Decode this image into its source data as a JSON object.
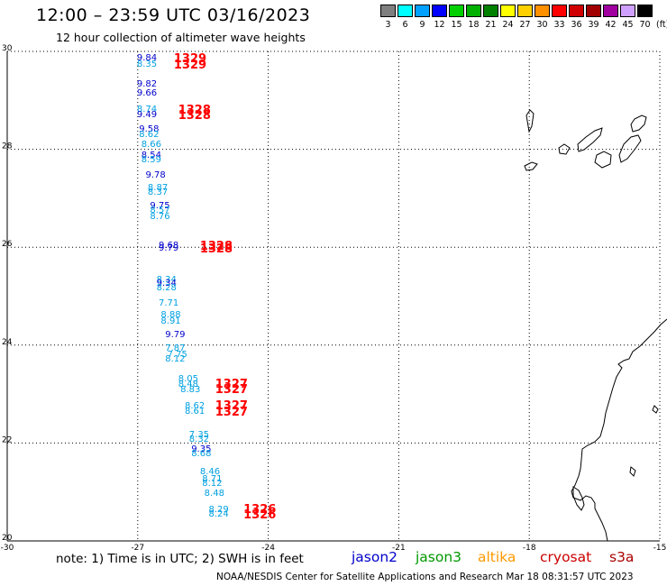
{
  "title": "12:00 – 23:59 UTC 03/16/2023",
  "subtitle": "12 hour collection of altimeter wave heights",
  "legend": {
    "unit": "(ft)",
    "bins": [
      {
        "label": "3",
        "color": "#7f7f7f"
      },
      {
        "label": "6",
        "color": "#00ffff"
      },
      {
        "label": "9",
        "color": "#00a0ff"
      },
      {
        "label": "12",
        "color": "#0000ff"
      },
      {
        "label": "15",
        "color": "#00d000"
      },
      {
        "label": "18",
        "color": "#00b000"
      },
      {
        "label": "21",
        "color": "#008000"
      },
      {
        "label": "24",
        "color": "#ffff00"
      },
      {
        "label": "27",
        "color": "#ffd000"
      },
      {
        "label": "30",
        "color": "#ff9000"
      },
      {
        "label": "33",
        "color": "#ff0000"
      },
      {
        "label": "36",
        "color": "#d00000"
      },
      {
        "label": "39",
        "color": "#a00000"
      },
      {
        "label": "42",
        "color": "#a000a0"
      },
      {
        "label": "45",
        "color": "#d0a0ff"
      },
      {
        "label": "70",
        "color": "#000000"
      }
    ]
  },
  "axes": {
    "lat_labels": [
      "30",
      "28",
      "26",
      "24",
      "22",
      "20"
    ],
    "lon_labels": [
      "-30",
      "-27",
      "-24",
      "-21",
      "-18",
      "-15"
    ],
    "lat_range": [
      20,
      30
    ],
    "lon_range": [
      -30,
      -15
    ]
  },
  "colors": {
    "jason2": "#0000cc",
    "jason3": "#009900",
    "altika": "#ff9900",
    "cryosat": "#cc0000",
    "s3a": "#aa0000",
    "cyan_obs": "#00a0e0",
    "blue_obs": "#0000cc",
    "red_obs": "#ff0000"
  },
  "observations": [
    {
      "v": "9.84",
      "c": "blue",
      "lon": -26.75,
      "lat": 29.86
    },
    {
      "v": "8.35",
      "c": "cyan",
      "lon": -26.75,
      "lat": 29.72
    },
    {
      "v": "1329",
      "c": "red",
      "lon": -25.9,
      "lat": 29.86,
      "big": true
    },
    {
      "v": "1329",
      "c": "red",
      "lon": -25.9,
      "lat": 29.72,
      "big": true
    },
    {
      "v": "9.82",
      "c": "blue",
      "lon": -26.75,
      "lat": 29.32
    },
    {
      "v": "9.66",
      "c": "blue",
      "lon": -26.75,
      "lat": 29.14
    },
    {
      "v": "8.74",
      "c": "cyan",
      "lon": -26.75,
      "lat": 28.8
    },
    {
      "v": "9.49",
      "c": "blue",
      "lon": -26.75,
      "lat": 28.7
    },
    {
      "v": "1328",
      "c": "red",
      "lon": -25.8,
      "lat": 28.8,
      "big": true
    },
    {
      "v": "1328",
      "c": "red",
      "lon": -25.8,
      "lat": 28.7,
      "big": true
    },
    {
      "v": "9.58",
      "c": "blue",
      "lon": -26.7,
      "lat": 28.4
    },
    {
      "v": "8.62",
      "c": "cyan",
      "lon": -26.7,
      "lat": 28.28
    },
    {
      "v": "8.66",
      "c": "cyan",
      "lon": -26.65,
      "lat": 28.08
    },
    {
      "v": "8.54",
      "c": "blue",
      "lon": -26.65,
      "lat": 27.86
    },
    {
      "v": "8.59",
      "c": "cyan",
      "lon": -26.65,
      "lat": 27.78
    },
    {
      "v": "9.78",
      "c": "blue",
      "lon": -26.55,
      "lat": 27.46
    },
    {
      "v": "8.87",
      "c": "cyan",
      "lon": -26.5,
      "lat": 27.2
    },
    {
      "v": "8.37",
      "c": "cyan",
      "lon": -26.5,
      "lat": 27.1
    },
    {
      "v": "9.75",
      "c": "blue",
      "lon": -26.45,
      "lat": 26.84
    },
    {
      "v": "8.57",
      "c": "cyan",
      "lon": -26.45,
      "lat": 26.74
    },
    {
      "v": "8.76",
      "c": "cyan",
      "lon": -26.45,
      "lat": 26.62
    },
    {
      "v": "9.68",
      "c": "blue",
      "lon": -26.25,
      "lat": 26.02
    },
    {
      "v": "9.79",
      "c": "blue",
      "lon": -26.25,
      "lat": 25.96
    },
    {
      "v": "1328",
      "c": "red",
      "lon": -25.3,
      "lat": 26.02,
      "big": true
    },
    {
      "v": "1328",
      "c": "red",
      "lon": -25.3,
      "lat": 25.96,
      "big": true
    },
    {
      "v": "8.34",
      "c": "cyan",
      "lon": -26.3,
      "lat": 25.32
    },
    {
      "v": "9.34",
      "c": "blue",
      "lon": -26.3,
      "lat": 25.24
    },
    {
      "v": "8.28",
      "c": "cyan",
      "lon": -26.3,
      "lat": 25.16
    },
    {
      "v": "7.71",
      "c": "cyan",
      "lon": -26.25,
      "lat": 24.84
    },
    {
      "v": "8.88",
      "c": "cyan",
      "lon": -26.2,
      "lat": 24.6
    },
    {
      "v": "8.91",
      "c": "cyan",
      "lon": -26.2,
      "lat": 24.48
    },
    {
      "v": "9.79",
      "c": "blue",
      "lon": -26.1,
      "lat": 24.2
    },
    {
      "v": "7.87",
      "c": "cyan",
      "lon": -26.1,
      "lat": 23.92
    },
    {
      "v": "7.75",
      "c": "cyan",
      "lon": -26.05,
      "lat": 23.8
    },
    {
      "v": "8.12",
      "c": "cyan",
      "lon": -26.1,
      "lat": 23.7
    },
    {
      "v": "8.05",
      "c": "cyan",
      "lon": -25.8,
      "lat": 23.3
    },
    {
      "v": "8.48",
      "c": "cyan",
      "lon": -25.8,
      "lat": 23.18
    },
    {
      "v": "8.83",
      "c": "cyan",
      "lon": -25.75,
      "lat": 23.08
    },
    {
      "v": "1327",
      "c": "red",
      "lon": -24.95,
      "lat": 23.2,
      "big": true
    },
    {
      "v": "1327",
      "c": "red",
      "lon": -24.95,
      "lat": 23.1,
      "big": true
    },
    {
      "v": "8.62",
      "c": "cyan",
      "lon": -25.65,
      "lat": 22.74
    },
    {
      "v": "8.61",
      "c": "cyan",
      "lon": -25.65,
      "lat": 22.64
    },
    {
      "v": "1327",
      "c": "red",
      "lon": -24.95,
      "lat": 22.76,
      "big": true
    },
    {
      "v": "1327",
      "c": "red",
      "lon": -24.95,
      "lat": 22.64,
      "big": true
    },
    {
      "v": "7.35",
      "c": "cyan",
      "lon": -25.55,
      "lat": 22.16
    },
    {
      "v": "8.32",
      "c": "cyan",
      "lon": -25.55,
      "lat": 22.06
    },
    {
      "v": "9.35",
      "c": "blue",
      "lon": -25.5,
      "lat": 21.86
    },
    {
      "v": "8.68",
      "c": "cyan",
      "lon": -25.5,
      "lat": 21.76
    },
    {
      "v": "8.46",
      "c": "cyan",
      "lon": -25.3,
      "lat": 21.4
    },
    {
      "v": "8.71",
      "c": "cyan",
      "lon": -25.25,
      "lat": 21.26
    },
    {
      "v": "8.12",
      "c": "cyan",
      "lon": -25.25,
      "lat": 21.16
    },
    {
      "v": "8.48",
      "c": "cyan",
      "lon": -25.2,
      "lat": 20.96
    },
    {
      "v": "8.29",
      "c": "cyan",
      "lon": -25.1,
      "lat": 20.62
    },
    {
      "v": "8.24",
      "c": "cyan",
      "lon": -25.1,
      "lat": 20.54
    },
    {
      "v": "1326",
      "c": "red",
      "lon": -24.3,
      "lat": 20.64,
      "big": true
    },
    {
      "v": "1326",
      "c": "red",
      "lon": -24.3,
      "lat": 20.54,
      "big": true
    }
  ],
  "footer": {
    "note": "note:  1) Time is in UTC;  2) SWH is in feet",
    "sat_jason2": "jason2",
    "sat_jason3": "jason3",
    "sat_altika": "altika",
    "sat_cryosat": "cryosat",
    "sat_s3a": "s3a",
    "credit": "NOAA/NESDIS Center for Satellite Applications and Research    Mar 18 08:31:57 UTC 2023"
  }
}
